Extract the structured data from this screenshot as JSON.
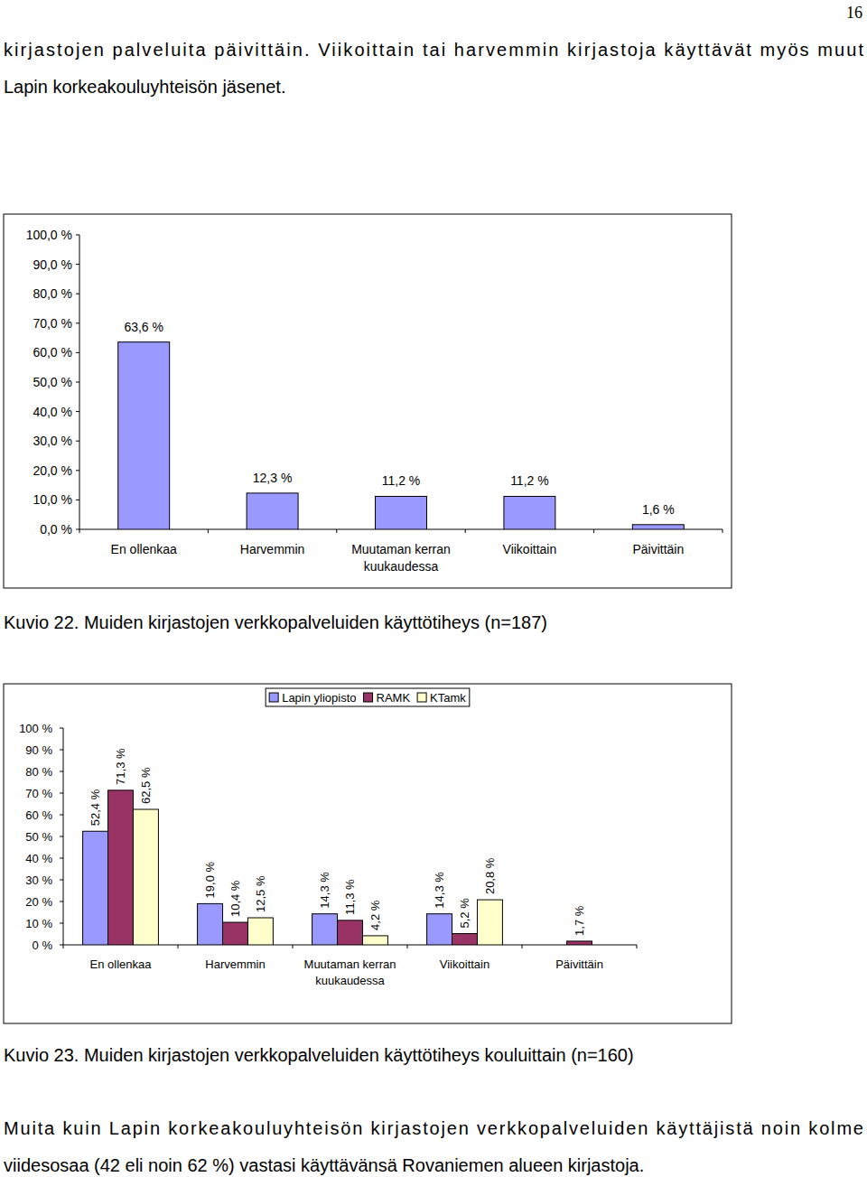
{
  "page_number": "16",
  "intro": [
    "kirjastojen palveluita päivittäin. Viikoittain tai harvemmin kirjastoja käyttävät myös muut",
    "Lapin korkeakouluyhteisön jäsenet."
  ],
  "chart_data": [
    {
      "type": "bar",
      "title": "Kuvio 22. Muiden kirjastojen verkkopalveluiden käyttötiheys (n=187)",
      "categories": [
        "En ollenkaa",
        "Harvemmin",
        "Muutaman kerran kuukaudessa",
        "Viikoittain",
        "Päivittäin"
      ],
      "values": [
        63.6,
        12.3,
        11.2,
        11.2,
        1.6
      ],
      "value_labels": [
        "63,6 %",
        "12,3 %",
        "11,2 %",
        "11,2 %",
        "1,6 %"
      ],
      "color": "#9999ff",
      "ylim": [
        0,
        100
      ],
      "yticks": [
        {
          "value": 0,
          "label": "0,0 %"
        },
        {
          "value": 10,
          "label": "10,0 %"
        },
        {
          "value": 20,
          "label": "20,0 %"
        },
        {
          "value": 30,
          "label": "30,0 %"
        },
        {
          "value": 40,
          "label": "40,0 %"
        },
        {
          "value": 50,
          "label": "50,0 %"
        },
        {
          "value": 60,
          "label": "60,0 %"
        },
        {
          "value": 70,
          "label": "70,0 %"
        },
        {
          "value": 80,
          "label": "80,0 %"
        },
        {
          "value": 90,
          "label": "90,0 %"
        },
        {
          "value": 100,
          "label": "100,0 %"
        }
      ],
      "grid": false,
      "data_labels": true
    },
    {
      "type": "bar",
      "title": "Kuvio 23. Muiden kirjastojen verkkopalveluiden käyttötiheys kouluittain (n=160)",
      "categories": [
        "En ollenkaa",
        "Harvemmin",
        "Muutaman kerran kuukaudessa",
        "Viikoittain",
        "Päivittäin"
      ],
      "series": [
        {
          "name": "Lapin yliopisto",
          "color": "#9999ff",
          "values": [
            52.4,
            19.0,
            14.3,
            14.3,
            null
          ],
          "value_labels": [
            "52,4 %",
            "19,0 %",
            "14,3 %",
            "14,3 %",
            null
          ]
        },
        {
          "name": "RAMK",
          "color": "#993366",
          "values": [
            71.3,
            10.4,
            11.3,
            5.2,
            1.7
          ],
          "value_labels": [
            "71,3 %",
            "10,4 %",
            "11,3 %",
            "5,2 %",
            "1,7 %"
          ]
        },
        {
          "name": "KTamk",
          "color": "#ffffcc",
          "values": [
            62.5,
            12.5,
            4.2,
            20.8,
            null
          ],
          "value_labels": [
            "62,5 %",
            "12,5 %",
            "4,2 %",
            "20,8 %",
            null
          ]
        }
      ],
      "ylim": [
        0,
        100
      ],
      "yticks": [
        {
          "value": 0,
          "label": "0 %"
        },
        {
          "value": 10,
          "label": "10 %"
        },
        {
          "value": 20,
          "label": "20 %"
        },
        {
          "value": 30,
          "label": "30 %"
        },
        {
          "value": 40,
          "label": "40 %"
        },
        {
          "value": 50,
          "label": "50 %"
        },
        {
          "value": 60,
          "label": "60 %"
        },
        {
          "value": 70,
          "label": "70 %"
        },
        {
          "value": 80,
          "label": "80 %"
        },
        {
          "value": 90,
          "label": "90 %"
        },
        {
          "value": 100,
          "label": "100 %"
        }
      ],
      "grid": false,
      "legend": "top",
      "data_labels": true
    }
  ],
  "closing": [
    "Muita kuin Lapin korkeakouluyhteisön kirjastojen verkkopalveluiden käyttäjistä noin kolme",
    "viidesosaa (42 eli noin 62 %) vastasi käyttävänsä Rovaniemen alueen kirjastoja."
  ]
}
